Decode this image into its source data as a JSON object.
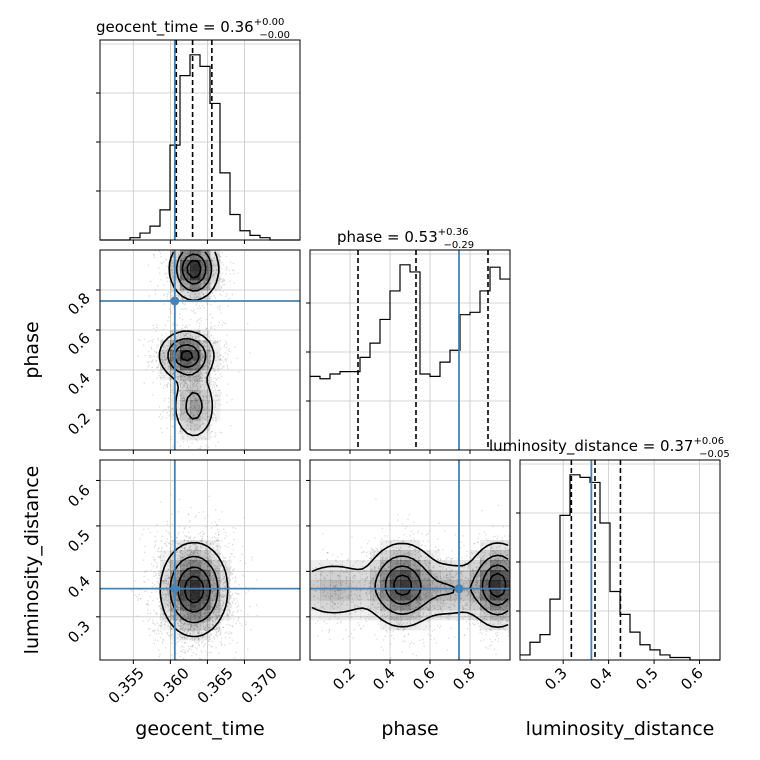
{
  "colors": {
    "truth": "#4682b4",
    "hist": "#000000",
    "grid": "#c8c8c8",
    "scatter": "#9a9a9a",
    "density": "#000000"
  },
  "chart_data": {
    "type": "corner",
    "parameters": [
      {
        "name": "geocent_time",
        "title_prefix": "geocent_time = ",
        "median_label": "0.36",
        "plus_label": "+0.00",
        "minus_label": "−0.00",
        "range": [
          0.3505,
          0.3775
        ],
        "ticks": [
          0.355,
          0.36,
          0.365,
          0.37
        ],
        "tick_labels": [
          "0.355",
          "0.360",
          "0.365",
          "0.370"
        ],
        "quantiles": [
          0.3608,
          0.363,
          0.3656
        ],
        "truth": 0.3606,
        "hist_x": [
          0.3505,
          0.35185,
          0.3532,
          0.35455,
          0.3559,
          0.35725,
          0.3586,
          0.35995,
          0.3613,
          0.36265,
          0.364,
          0.36535,
          0.3667,
          0.36805,
          0.3694,
          0.37075,
          0.3721,
          0.37345,
          0.3748,
          0.37615,
          0.3775
        ],
        "hist_counts": [
          0,
          0,
          0,
          1,
          3,
          6,
          13,
          41,
          71,
          80,
          75,
          59,
          29,
          11,
          4,
          2,
          1,
          0,
          0,
          0
        ]
      },
      {
        "name": "phase",
        "title_prefix": "phase = ",
        "median_label": "0.53",
        "plus_label": "+0.36",
        "minus_label": "−0.29",
        "range": [
          0.0,
          1.0
        ],
        "ticks": [
          0.2,
          0.4,
          0.6,
          0.8
        ],
        "tick_labels": [
          "0.2",
          "0.4",
          "0.6",
          "0.8"
        ],
        "quantiles": [
          0.24,
          0.53,
          0.89
        ],
        "truth": 0.745,
        "hist_x": [
          0.0,
          0.05,
          0.1,
          0.15,
          0.2,
          0.25,
          0.3,
          0.35,
          0.4,
          0.45,
          0.5,
          0.55,
          0.6,
          0.65,
          0.7,
          0.75,
          0.8,
          0.85,
          0.9,
          0.95,
          1.0
        ],
        "hist_counts": [
          31,
          30,
          32,
          33,
          33,
          39,
          45,
          55,
          67,
          78,
          75,
          32,
          31,
          37,
          42,
          57,
          58,
          67,
          77,
          72
        ]
      },
      {
        "name": "luminosity_distance",
        "title_prefix": "luminosity_distance = ",
        "median_label": "0.37",
        "plus_label": "+0.06",
        "minus_label": "−0.05",
        "range": [
          0.205,
          0.645
        ],
        "ticks": [
          0.3,
          0.4,
          0.5,
          0.6
        ],
        "tick_labels": [
          "0.3",
          "0.4",
          "0.5",
          "0.6"
        ],
        "quantiles": [
          0.318,
          0.37,
          0.426
        ],
        "truth": 0.362,
        "hist_x": [
          0.205,
          0.227,
          0.249,
          0.271,
          0.293,
          0.315,
          0.337,
          0.359,
          0.381,
          0.403,
          0.425,
          0.447,
          0.469,
          0.491,
          0.513,
          0.535,
          0.557,
          0.579,
          0.601,
          0.623,
          0.645
        ],
        "hist_counts": [
          2,
          7,
          10,
          24,
          57,
          73,
          72,
          70,
          54,
          27,
          18,
          11,
          6,
          4,
          2,
          1,
          1,
          0,
          0,
          0
        ]
      }
    ],
    "density_2d": [
      {
        "x": "geocent_time",
        "y": "phase",
        "truth_point": [
          0.3606,
          0.745
        ],
        "modes": [
          {
            "x": 0.3632,
            "y": 0.905,
            "sx": 0.0016,
            "sy": 0.075,
            "w": 1.0
          },
          {
            "x": 0.3622,
            "y": 0.472,
            "sx": 0.0018,
            "sy": 0.06,
            "w": 0.92
          },
          {
            "x": 0.3632,
            "y": 0.22,
            "sx": 0.0015,
            "sy": 0.09,
            "w": 0.45
          }
        ]
      },
      {
        "x": "geocent_time",
        "y": "luminosity_distance",
        "truth_point": [
          0.3606,
          0.362
        ],
        "modes": [
          {
            "x": 0.3632,
            "y": 0.36,
            "sx": 0.0022,
            "sy": 0.05,
            "w": 1.0
          }
        ]
      },
      {
        "x": "phase",
        "y": "luminosity_distance",
        "truth_point": [
          0.745,
          0.362
        ],
        "modes": [
          {
            "x": 0.46,
            "y": 0.37,
            "sx": 0.085,
            "sy": 0.045,
            "w": 0.95
          },
          {
            "x": 0.94,
            "y": 0.37,
            "sx": 0.07,
            "sy": 0.045,
            "w": 1.0
          },
          {
            "x": 0.12,
            "y": 0.36,
            "sx": 0.12,
            "sy": 0.035,
            "w": 0.35
          },
          {
            "x": 0.7,
            "y": 0.36,
            "sx": 0.1,
            "sy": 0.035,
            "w": 0.35
          }
        ]
      }
    ]
  }
}
